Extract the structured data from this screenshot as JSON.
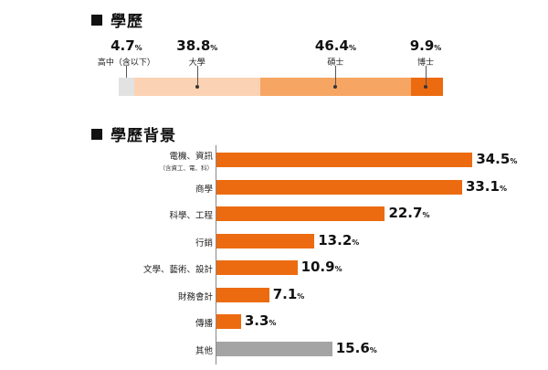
{
  "education": {
    "title": "學歷",
    "unit": "%",
    "segments": [
      {
        "label": "高中（含以下）",
        "value": 4.7,
        "value_text": "4.7",
        "color": "#e2e2e2"
      },
      {
        "label": "大學",
        "value": 38.8,
        "value_text": "38.8",
        "color": "#fbd2b3"
      },
      {
        "label": "碩士",
        "value": 46.4,
        "value_text": "46.4",
        "color": "#f7a562"
      },
      {
        "label": "博士",
        "value": 9.9,
        "value_text": "9.9",
        "color": "#ec6b11"
      }
    ]
  },
  "background": {
    "title": "學歷背景",
    "unit": "%",
    "colors": {
      "orange": "#ec6b11",
      "gray": "#a4a4a4"
    },
    "items": [
      {
        "label": "電機、資訊",
        "sublabel": "（含資工、電、科）",
        "value": 34.5,
        "value_text": "34.5",
        "color": "#ec6b11"
      },
      {
        "label": "商學",
        "value": 33.1,
        "value_text": "33.1",
        "color": "#ec6b11"
      },
      {
        "label": "科學、工程",
        "value": 22.7,
        "value_text": "22.7",
        "color": "#ec6b11"
      },
      {
        "label": "行銷",
        "value": 13.2,
        "value_text": "13.2",
        "color": "#ec6b11"
      },
      {
        "label": "文學、藝術、設計",
        "value": 10.9,
        "value_text": "10.9",
        "color": "#ec6b11"
      },
      {
        "label": "財務會計",
        "value": 7.1,
        "value_text": "7.1",
        "color": "#ec6b11"
      },
      {
        "label": "傳播",
        "value": 3.3,
        "value_text": "3.3",
        "color": "#ec6b11"
      },
      {
        "label": "其他",
        "value": 15.6,
        "value_text": "15.6",
        "color": "#a4a4a4"
      }
    ]
  },
  "chart_data": [
    {
      "type": "bar",
      "orientation": "stacked-horizontal",
      "title": "學歷",
      "categories": [
        "高中（含以下）",
        "大學",
        "碩士",
        "博士"
      ],
      "values": [
        4.7,
        38.8,
        46.4,
        9.9
      ],
      "unit": "%",
      "xlim": [
        0,
        100
      ]
    },
    {
      "type": "bar",
      "orientation": "horizontal",
      "title": "學歷背景",
      "categories": [
        "電機、資訊（含資工、電、科）",
        "商學",
        "科學、工程",
        "行銷",
        "文學、藝術、設計",
        "財務會計",
        "傳播",
        "其他"
      ],
      "values": [
        34.5,
        33.1,
        22.7,
        13.2,
        10.9,
        7.1,
        3.3,
        15.6
      ],
      "unit": "%",
      "xlim": [
        0,
        40
      ]
    }
  ]
}
